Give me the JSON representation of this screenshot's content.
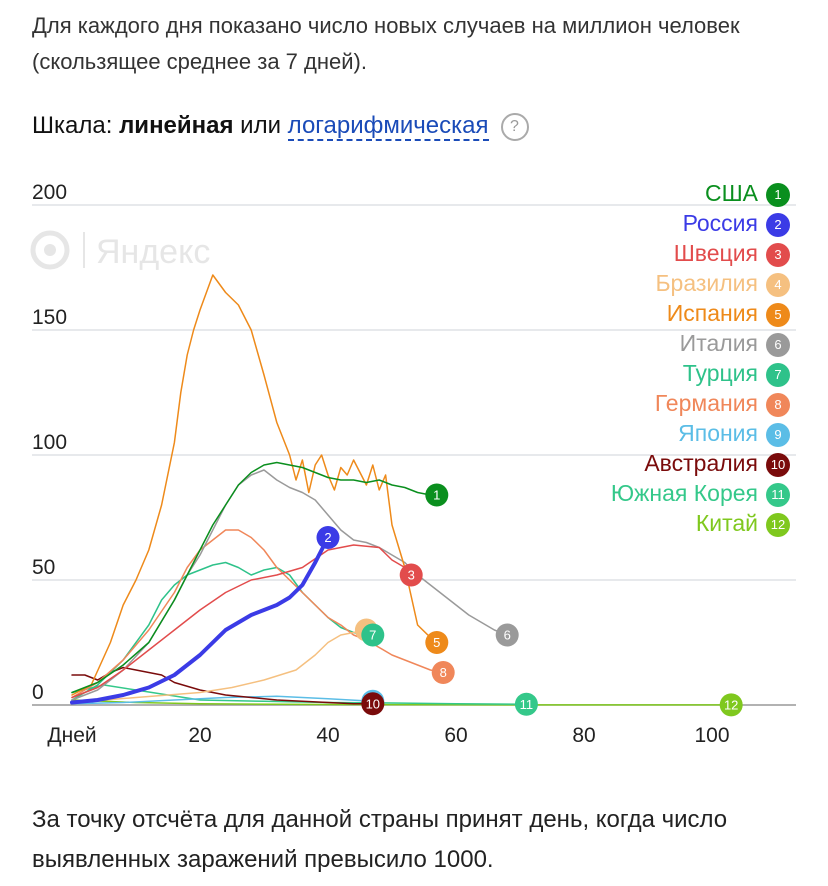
{
  "intro_text": "Для каждого дня показано число новых случаев на миллион человек (скользящее среднее за 7 дней).",
  "scale": {
    "label": "Шкала: ",
    "linear": "линейная",
    "or": " или ",
    "log": "логарифмическая",
    "help": "?"
  },
  "watermark": "Яндекс",
  "footer_text": "За точку отсчёта для данной страны принят день, когда число выявленных заражений превысило 1000.",
  "chart_data": {
    "type": "line",
    "xlabel": "Дней",
    "x_ticks": [
      20,
      40,
      60,
      80,
      100
    ],
    "y_ticks": [
      0,
      50,
      100,
      150,
      200
    ],
    "xlim": [
      0,
      115
    ],
    "ylim": [
      0,
      200
    ],
    "grid": true,
    "legend_position": "top-right",
    "series": [
      {
        "name": "США",
        "marker": "1",
        "color": "#0a8f1e",
        "width": 1.5,
        "x": [
          0,
          4,
          8,
          12,
          16,
          18,
          20,
          22,
          24,
          26,
          28,
          30,
          32,
          34,
          36,
          38,
          40,
          42,
          44,
          46,
          48,
          50,
          52,
          54,
          56,
          57
        ],
        "y": [
          5,
          9,
          16,
          25,
          42,
          52,
          62,
          72,
          80,
          88,
          93,
          96,
          97,
          96,
          95,
          93,
          91,
          90,
          90,
          89,
          90,
          88,
          87,
          85,
          84,
          84
        ]
      },
      {
        "name": "Россия",
        "marker": "2",
        "color": "#3b3be6",
        "width": 4,
        "x": [
          0,
          4,
          8,
          12,
          16,
          20,
          22,
          24,
          26,
          28,
          30,
          32,
          34,
          36,
          38,
          40
        ],
        "y": [
          1,
          2,
          4,
          7,
          12,
          20,
          25,
          30,
          33,
          36,
          38,
          40,
          43,
          48,
          57,
          67
        ]
      },
      {
        "name": "Швеция",
        "marker": "3",
        "color": "#e24c4c",
        "width": 1.5,
        "x": [
          0,
          4,
          8,
          12,
          16,
          20,
          24,
          28,
          32,
          36,
          40,
          44,
          48,
          50,
          52,
          53
        ],
        "y": [
          3,
          7,
          14,
          22,
          30,
          38,
          45,
          50,
          52,
          55,
          62,
          64,
          63,
          58,
          55,
          52
        ]
      },
      {
        "name": "Бразилия",
        "marker": "4",
        "color": "#f5c080",
        "width": 1.5,
        "x": [
          0,
          5,
          10,
          15,
          20,
          25,
          30,
          35,
          38,
          40,
          42,
          44,
          46
        ],
        "y": [
          1,
          2,
          3,
          4,
          5,
          7,
          10,
          14,
          20,
          25,
          28,
          29,
          30
        ]
      },
      {
        "name": "Испания",
        "marker": "5",
        "color": "#ee8a1a",
        "width": 1.5,
        "x": [
          0,
          3,
          6,
          8,
          10,
          12,
          14,
          16,
          17,
          18,
          19,
          20,
          21,
          22,
          24,
          26,
          28,
          30,
          32,
          34,
          35,
          36,
          37,
          38,
          39,
          40,
          41,
          42,
          43,
          44,
          45,
          46,
          47,
          48,
          49,
          50,
          52,
          54,
          56,
          57
        ],
        "y": [
          4,
          8,
          25,
          40,
          50,
          62,
          80,
          105,
          125,
          140,
          150,
          158,
          165,
          172,
          165,
          160,
          150,
          132,
          113,
          100,
          90,
          98,
          85,
          96,
          100,
          92,
          86,
          95,
          92,
          98,
          93,
          88,
          96,
          86,
          92,
          72,
          55,
          32,
          27,
          25
        ]
      },
      {
        "name": "Италия",
        "marker": "6",
        "color": "#9a9a9a",
        "width": 1.5,
        "x": [
          0,
          4,
          8,
          12,
          16,
          18,
          20,
          22,
          24,
          26,
          28,
          30,
          32,
          34,
          36,
          38,
          40,
          42,
          44,
          46,
          48,
          50,
          52,
          54,
          56,
          58,
          60,
          62,
          64,
          66,
          68
        ],
        "y": [
          2,
          6,
          14,
          25,
          42,
          52,
          60,
          70,
          80,
          88,
          92,
          94,
          90,
          87,
          85,
          82,
          76,
          70,
          66,
          65,
          63,
          60,
          57,
          52,
          48,
          44,
          40,
          36,
          33,
          30,
          28
        ]
      },
      {
        "name": "Турция",
        "marker": "7",
        "color": "#2ec28a",
        "width": 1.5,
        "x": [
          0,
          4,
          8,
          12,
          14,
          16,
          18,
          20,
          22,
          24,
          26,
          28,
          30,
          32,
          34,
          36,
          38,
          40,
          42,
          44,
          46,
          47
        ],
        "y": [
          2,
          8,
          18,
          32,
          42,
          48,
          52,
          54,
          56,
          57,
          55,
          52,
          54,
          55,
          52,
          45,
          40,
          35,
          31,
          29,
          28,
          28
        ]
      },
      {
        "name": "Германия",
        "marker": "8",
        "color": "#f0875a",
        "width": 1.5,
        "x": [
          0,
          4,
          8,
          12,
          16,
          18,
          20,
          22,
          24,
          26,
          28,
          30,
          32,
          34,
          36,
          38,
          40,
          42,
          44,
          46,
          48,
          50,
          52,
          54,
          56,
          58
        ],
        "y": [
          3,
          9,
          18,
          30,
          45,
          55,
          62,
          66,
          70,
          70,
          67,
          62,
          55,
          50,
          45,
          40,
          35,
          32,
          28,
          26,
          23,
          20,
          18,
          16,
          14,
          13
        ]
      },
      {
        "name": "Япония",
        "marker": "9",
        "color": "#5bbde6",
        "width": 1.5,
        "x": [
          0,
          8,
          16,
          24,
          32,
          40,
          47
        ],
        "y": [
          0.5,
          1,
          2,
          3,
          3.5,
          2.5,
          1.5
        ]
      },
      {
        "name": "Австралия",
        "marker": "10",
        "color": "#7a0b0b",
        "width": 1.5,
        "x": [
          0,
          2,
          4,
          6,
          8,
          10,
          12,
          14,
          16,
          20,
          24,
          28,
          32,
          36,
          40,
          44,
          47
        ],
        "y": [
          12,
          12,
          10,
          13,
          15,
          14,
          13,
          12,
          9,
          6,
          4,
          3,
          2,
          1.5,
          1,
          0.5,
          0.5
        ]
      },
      {
        "name": "Южная Корея",
        "marker": "11",
        "color": "#34c88a",
        "width": 1.5,
        "x": [
          0,
          5,
          10,
          15,
          20,
          30,
          40,
          50,
          60,
          71
        ],
        "y": [
          5,
          8,
          6,
          4,
          2,
          1.5,
          1,
          0.8,
          0.5,
          0.3
        ]
      },
      {
        "name": "Китай",
        "marker": "12",
        "color": "#7fc81e",
        "width": 1.5,
        "x": [
          0,
          5,
          10,
          20,
          40,
          60,
          80,
          103
        ],
        "y": [
          2,
          1.5,
          1,
          0.5,
          0.2,
          0.1,
          0.05,
          0.05
        ]
      }
    ]
  }
}
